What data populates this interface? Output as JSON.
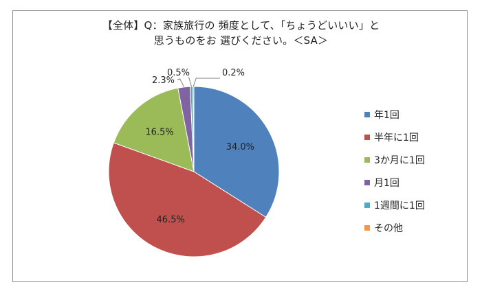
{
  "chart_data": {
    "type": "pie",
    "title": [
      "【全体】Q：家族旅行の 頻度として、「ちょうどいいい」と",
      "思うものをお 選びください。＜SA＞"
    ],
    "categories": [
      "年1回",
      "半年に1回",
      "3か月に1回",
      "月1回",
      "1週間に1回",
      "その他"
    ],
    "values": [
      34.0,
      46.5,
      16.5,
      2.3,
      0.5,
      0.2
    ],
    "value_labels": [
      "34.0%",
      "46.5%",
      "16.5%",
      "2.3%",
      "0.5%",
      "0.2%"
    ],
    "colors": [
      "#4f81bd",
      "#c0504d",
      "#9bbb59",
      "#8064a2",
      "#4bacc6",
      "#f79646"
    ],
    "legend_position": "right",
    "start_angle_deg": 0,
    "direction": "clockwise"
  }
}
